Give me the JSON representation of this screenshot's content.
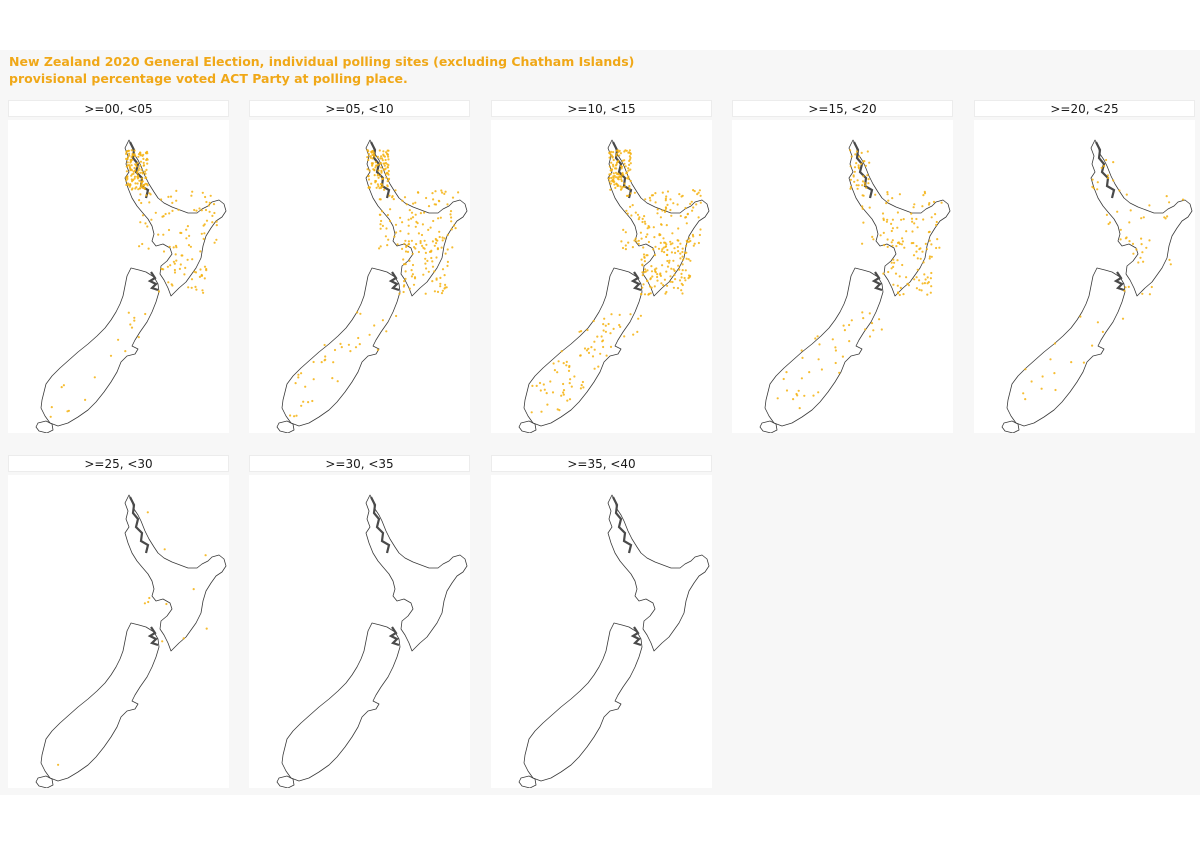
{
  "title": {
    "line1": "New Zealand 2020 General Election, individual polling sites (excluding Chatham Islands)",
    "line2": "provisional percentage voted ACT Party at polling place."
  },
  "colors": {
    "accent": "#f0a818",
    "point": "#f5b20f",
    "coast": "#3a3a3a",
    "background": "#f7f7f7"
  },
  "map_data": {
    "type": "small-multiples point map",
    "region": "New Zealand (excluding Chatham Islands)",
    "panels": [
      {
        "label": ">=00, <05",
        "density": "high, concentrated in northern and central North Island",
        "point_count": 260
      },
      {
        "label": ">=05, <10",
        "density": "high, widespread North Island, scattered South Island",
        "point_count": 320
      },
      {
        "label": ">=10, <15",
        "density": "very high, widespread both islands",
        "point_count": 430
      },
      {
        "label": ">=15, <20",
        "density": "moderate, spread across both islands",
        "point_count": 210
      },
      {
        "label": ">=20, <25",
        "density": "low, scattered",
        "point_count": 70
      },
      {
        "label": ">=25, <30",
        "density": "very low",
        "point_count": 12
      },
      {
        "label": ">=30, <35",
        "density": "none visible",
        "point_count": 0
      },
      {
        "label": ">=35, <40",
        "density": "none visible",
        "point_count": 0
      }
    ]
  }
}
